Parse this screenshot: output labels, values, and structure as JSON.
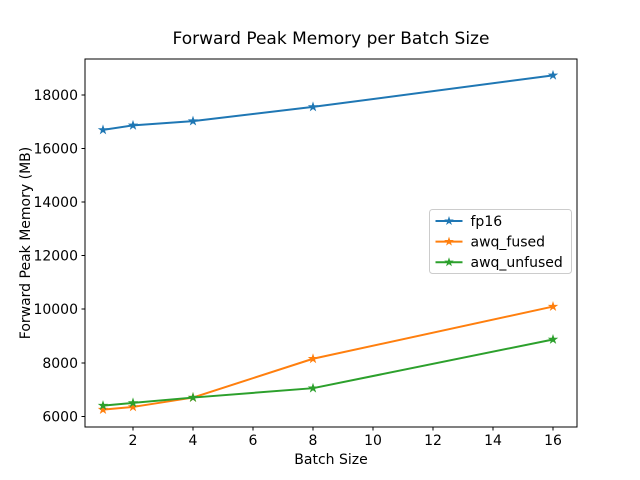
{
  "figure": {
    "kind": "matplotlib-line-chart"
  },
  "chart_data": {
    "type": "line",
    "title": "Forward Peak Memory per Batch Size",
    "xlabel": "Batch Size",
    "ylabel": "Forward Peak Memory (MB)",
    "x": [
      1,
      2,
      4,
      8,
      16
    ],
    "series": [
      {
        "name": "fp16",
        "color": "#1f77b4",
        "marker": "star",
        "values": [
          16700,
          16870,
          17030,
          17560,
          18740
        ]
      },
      {
        "name": "awq_fused",
        "color": "#ff7f0e",
        "marker": "star",
        "values": [
          6250,
          6350,
          6700,
          8150,
          10100
        ]
      },
      {
        "name": "awq_unfused",
        "color": "#2ca02c",
        "marker": "star",
        "values": [
          6400,
          6500,
          6700,
          7050,
          8870
        ]
      }
    ],
    "xticks": [
      2,
      4,
      6,
      8,
      10,
      12,
      14,
      16
    ],
    "yticks": [
      6000,
      8000,
      10000,
      12000,
      14000,
      16000,
      18000
    ],
    "xlim": [
      0.4,
      16.8
    ],
    "ylim": [
      5600,
      19350
    ],
    "grid": false,
    "legend_position": "center right",
    "legend_border_color": "#cccccc",
    "axis_color": "#000000"
  }
}
